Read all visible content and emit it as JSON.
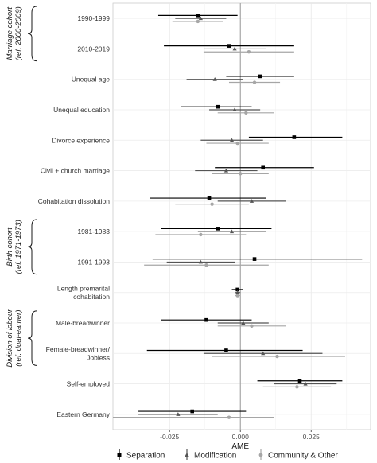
{
  "chart_data": {
    "type": "scatter",
    "xlabel": "AME",
    "xlim": [
      -0.045,
      0.046
    ],
    "x_ticks": [
      -0.025,
      0.0,
      0.025
    ],
    "x_tick_labels": [
      "-0.025",
      "0.000",
      "0.025"
    ],
    "grid": true,
    "reference_line_x": 0,
    "legend_position": "bottom",
    "categories": [
      "1990-1999",
      "2010-2019",
      "Unequal age",
      "Unequal education",
      "Divorce experience",
      "Civil + church marriage",
      "Cohabitation dissolution",
      "1981-1983",
      "1991-1993",
      "Length premarital\ncohabitation",
      "Male-breadwinner",
      "Female-breadwinner/\nJobless",
      "Self-employed",
      "Eastern Germany"
    ],
    "groups": [
      {
        "label": "Marriage cohort\n(ref. 2000-2009)",
        "categories": [
          "1990-1999",
          "2010-2019"
        ]
      },
      {
        "label": "Birth cohort\n(ref. 1971-1973)",
        "categories": [
          "1981-1983",
          "1991-1993"
        ]
      },
      {
        "label": "Division of labour\n(ref. dual-earner)",
        "categories": [
          "Male-breadwinner",
          "Female-breadwinner/\nJobless"
        ]
      }
    ],
    "series": [
      {
        "name": "Separation",
        "color": "#000000",
        "marker": "square",
        "estimates": [
          -0.015,
          -0.004,
          0.007,
          -0.008,
          0.019,
          0.008,
          -0.011,
          -0.008,
          0.005,
          -0.001,
          -0.012,
          -0.005,
          0.021,
          -0.017
        ],
        "ci_low": [
          -0.029,
          -0.027,
          -0.005,
          -0.021,
          0.003,
          -0.009,
          -0.032,
          -0.028,
          -0.031,
          -0.003,
          -0.028,
          -0.033,
          0.006,
          -0.036
        ],
        "ci_high": [
          -0.001,
          0.019,
          0.019,
          0.004,
          0.036,
          0.026,
          0.009,
          0.011,
          0.043,
          0.001,
          0.004,
          0.022,
          0.036,
          0.002
        ]
      },
      {
        "name": "Modification",
        "color": "#555555",
        "marker": "triangle",
        "estimates": [
          -0.014,
          -0.002,
          -0.009,
          -0.002,
          -0.003,
          -0.005,
          0.004,
          -0.003,
          -0.014,
          -0.001,
          0.001,
          0.008,
          0.023,
          -0.022
        ],
        "ci_low": [
          -0.023,
          -0.013,
          -0.019,
          -0.011,
          -0.014,
          -0.016,
          -0.008,
          -0.015,
          -0.026,
          -0.002,
          -0.008,
          -0.013,
          0.012,
          -0.036
        ],
        "ci_high": [
          -0.005,
          0.009,
          0.001,
          0.007,
          0.008,
          0.006,
          0.016,
          0.009,
          -0.002,
          0.0,
          0.01,
          0.029,
          0.034,
          -0.008
        ]
      },
      {
        "name": "Community & Other",
        "color": "#a6a6a6",
        "marker": "circle",
        "estimates": [
          -0.015,
          0.003,
          0.005,
          0.002,
          -0.001,
          0.0,
          -0.01,
          -0.014,
          -0.012,
          -0.001,
          0.004,
          0.013,
          0.02,
          -0.004
        ],
        "ci_low": [
          -0.024,
          -0.013,
          -0.004,
          -0.008,
          -0.012,
          -0.01,
          -0.023,
          -0.03,
          -0.034,
          -0.002,
          -0.008,
          -0.01,
          0.008,
          -0.045
        ],
        "ci_high": [
          -0.006,
          0.019,
          0.014,
          0.012,
          0.01,
          0.01,
          0.003,
          0.002,
          0.01,
          0.0,
          0.016,
          0.037,
          0.032,
          0.012
        ]
      }
    ]
  }
}
